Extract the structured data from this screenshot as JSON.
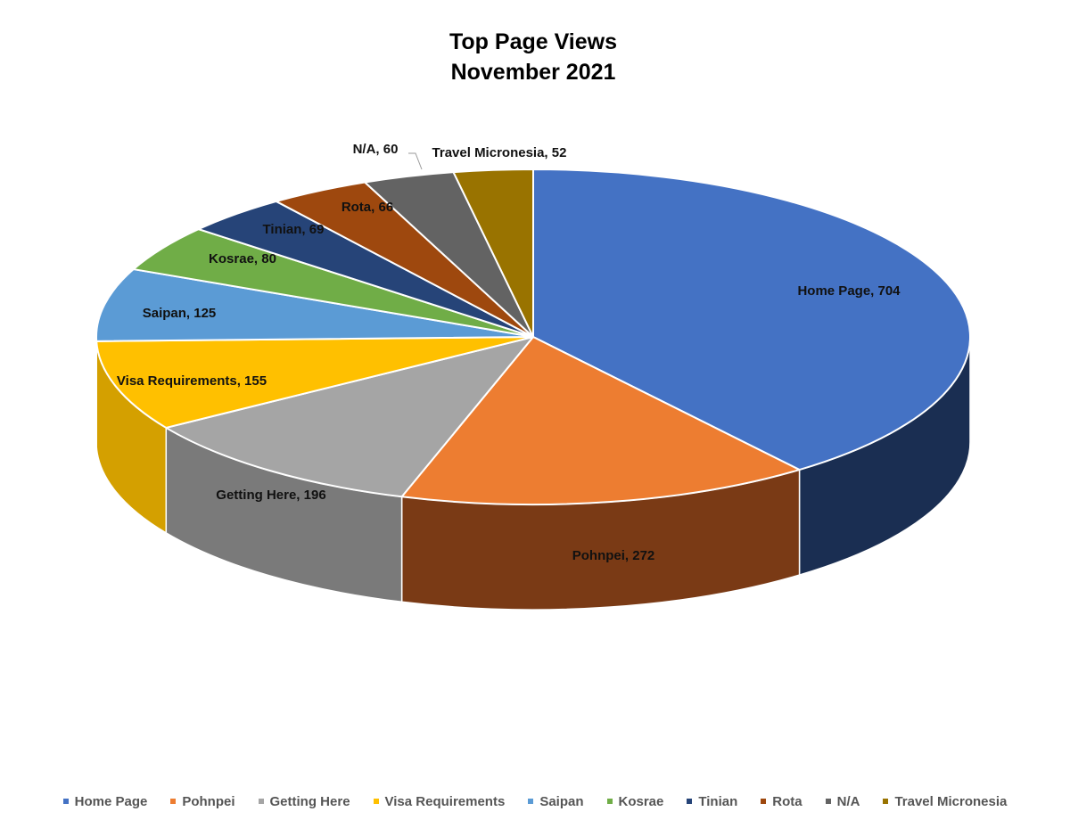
{
  "chart_data": {
    "type": "pie",
    "title": "Top Page Views",
    "subtitle": "November 2021",
    "slices": [
      {
        "name": "Home Page",
        "value": 704,
        "label": "Home Page, 704",
        "color": "#4472C4",
        "side": "#1A2E52"
      },
      {
        "name": "Pohnpei",
        "value": 272,
        "label": "Pohnpei, 272",
        "color": "#ED7D31",
        "side": "#7A3A15"
      },
      {
        "name": "Getting Here",
        "value": 196,
        "label": "Getting Here, 196",
        "color": "#A5A5A5",
        "side": "#7A7A7A"
      },
      {
        "name": "Visa Requirements",
        "value": 155,
        "label": "Visa Requirements, 155",
        "color": "#FFC000",
        "side": "#D4A000"
      },
      {
        "name": "Saipan",
        "value": 125,
        "label": "Saipan, 125",
        "color": "#5B9BD5",
        "side": "#2F5F8E"
      },
      {
        "name": "Kosrae",
        "value": 80,
        "label": "Kosrae, 80",
        "color": "#70AD47",
        "side": "#3E6B22"
      },
      {
        "name": "Tinian",
        "value": 69,
        "label": "Tinian, 69",
        "color": "#264478",
        "side": "#15294A"
      },
      {
        "name": "Rota",
        "value": 66,
        "label": "Rota, 66",
        "color": "#9E480E",
        "side": "#5E2A08"
      },
      {
        "name": "N/A",
        "value": 60,
        "label": "N/A,  60",
        "color": "#636363",
        "side": "#3E3E3E"
      },
      {
        "name": "Travel Micronesia",
        "value": 52,
        "label": "Travel Micronesia, 52",
        "color": "#997300",
        "side": "#5E4700"
      }
    ],
    "legend_position": "bottom"
  }
}
